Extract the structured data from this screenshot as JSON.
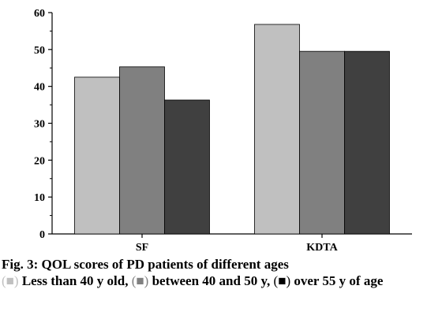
{
  "chart_data": {
    "type": "bar",
    "categories": [
      "SF",
      "KDTA"
    ],
    "series": [
      {
        "name": "Less than 40 y old",
        "values": [
          42.5,
          56.8
        ]
      },
      {
        "name": "between 40 and 50 y",
        "values": [
          45.3,
          49.5
        ]
      },
      {
        "name": "over 55 y of age",
        "values": [
          36.3,
          49.5
        ]
      }
    ],
    "colors": [
      "#c0c0c0",
      "#808080",
      "#404040"
    ],
    "ylim": [
      0,
      60
    ],
    "yticks": [
      "0",
      "10",
      "20",
      "30",
      "40",
      "50",
      "60"
    ],
    "grid": false,
    "xlabel": "",
    "ylabel": ""
  },
  "caption": {
    "line1": "Fig. 3: QOL scores of PD patients of different ages",
    "swatch_light": "(■)",
    "part1": " Less than 40 y old, ",
    "swatch_mid": "(■)",
    "part2": " between 40 and 50 y, ",
    "swatch_dark": "(■)",
    "part3": " over 55 y of age"
  }
}
